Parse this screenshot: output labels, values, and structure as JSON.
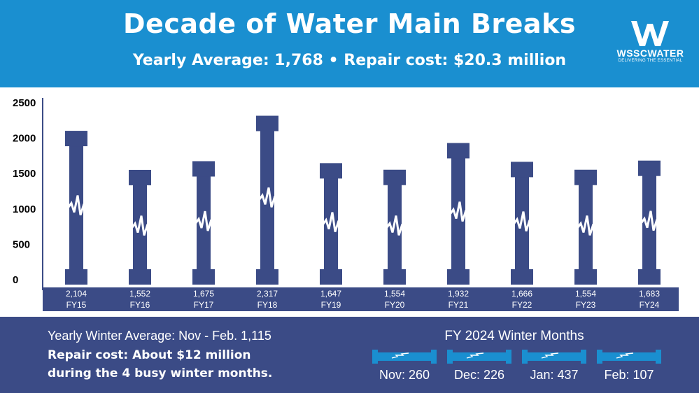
{
  "header": {
    "title": "Decade of  Water Main Breaks",
    "subtitle": "Yearly Average: 1,768  •  Repair cost: $20.3 million",
    "background": "#1a8fd0"
  },
  "logo": {
    "name": "WSSCWATER",
    "tagline": "DELIVERING THE ESSENTIAL",
    "icon": "wssc-w-logo-icon"
  },
  "chart_data": {
    "type": "bar",
    "categories": [
      "FY15",
      "FY16",
      "FY17",
      "FY18",
      "FY19",
      "FY20",
      "FY21",
      "FY22",
      "FY23",
      "FY24"
    ],
    "values": [
      2104,
      1552,
      1675,
      2317,
      1647,
      1554,
      1932,
      1666,
      1554,
      1683
    ],
    "value_labels": [
      "2,104",
      "1,552",
      "1,675",
      "2,317",
      "1,647",
      "1,554",
      "1,932",
      "1,666",
      "1,554",
      "1,683"
    ],
    "yticks": [
      "0",
      "500",
      "1000",
      "1500",
      "2000",
      "2500"
    ],
    "ylim": [
      0,
      2500
    ],
    "grid": false,
    "bar_style": "pipe-with-break",
    "bar_color": "#3b4b86"
  },
  "footer": {
    "winter_average": "Yearly Winter Average: Nov - Feb. 1,115",
    "repair_cost_line1": "Repair cost: About $12 million",
    "repair_cost_line2": "during the 4 busy winter months.",
    "months_title": "FY 2024 Winter Months",
    "months": [
      {
        "label": "Nov: 260"
      },
      {
        "label": "Dec: 226"
      },
      {
        "label": "Jan: 437"
      },
      {
        "label": "Feb: 107"
      }
    ],
    "pipe_color": "#1a8fd0",
    "background": "#3b4b86"
  }
}
